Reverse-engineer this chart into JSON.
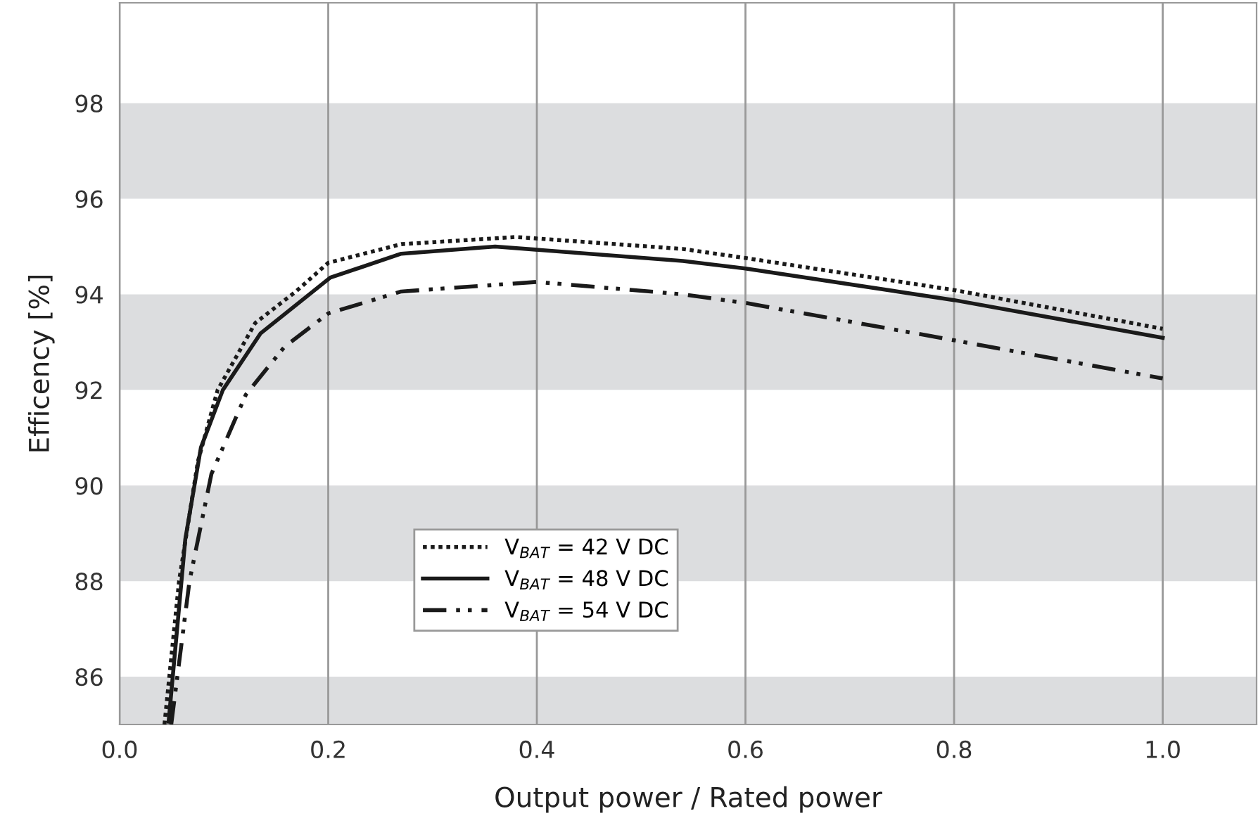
{
  "chart_data": {
    "type": "line",
    "xlabel": "Output power / Rated power",
    "ylabel": "Efficency [%]",
    "xlim": [
      0,
      1.09
    ],
    "ylim": [
      85,
      100.1
    ],
    "xticks": [
      {
        "value": 0,
        "label": "0.0"
      },
      {
        "value": 0.2,
        "label": "0.2"
      },
      {
        "value": 0.4,
        "label": "0.4"
      },
      {
        "value": 0.6,
        "label": "0.6"
      },
      {
        "value": 0.8,
        "label": "0.8"
      },
      {
        "value": 1.0,
        "label": "1.0"
      }
    ],
    "yticks": [
      86,
      88,
      90,
      92,
      94,
      96,
      98
    ],
    "grid": "x",
    "legend": "bottom",
    "bands": [
      {
        "axis": "y",
        "from": 85,
        "to": 86,
        "color": "#dcdddf"
      },
      {
        "axis": "y",
        "from": 88,
        "to": 90,
        "color": "#dcdddf"
      },
      {
        "axis": "y",
        "from": 92,
        "to": 94,
        "color": "#dcdddf"
      },
      {
        "axis": "y",
        "from": 96,
        "to": 98,
        "color": "#dcdddf"
      }
    ],
    "series": [
      {
        "name": "V$_{BAT}$ = 42 V DC",
        "color": "#1a1a1a",
        "line_style": "dotted",
        "x": [
          0.043,
          0.057,
          0.075,
          0.094,
          0.13,
          0.169,
          0.2,
          0.27,
          0.38,
          0.54,
          0.6,
          0.8,
          1.0
        ],
        "values": [
          85,
          88,
          90.5,
          92,
          93.4,
          94.06,
          94.66,
          95.05,
          95.2,
          94.95,
          94.76,
          94.09,
          93.28
        ]
      },
      {
        "name": "V$_{BAT}$ = 48 V DC",
        "color": "#1a1a1a",
        "line_style": "solid",
        "x": [
          0.047,
          0.063,
          0.078,
          0.099,
          0.135,
          0.202,
          0.27,
          0.36,
          0.54,
          0.6,
          0.8,
          1.0
        ],
        "values": [
          85.06,
          88.88,
          90.8,
          92,
          93.18,
          94.35,
          94.85,
          95,
          94.7,
          94.54,
          93.88,
          93.09
        ]
      },
      {
        "name": "V$_{BAT}$ = 54 V DC",
        "color": "#1a1a1a",
        "line_style": "dashed",
        "x": [
          0.0495,
          0.067,
          0.088,
          0.121,
          0.158,
          0.2,
          0.27,
          0.4,
          0.54,
          0.6,
          0.8,
          1.0
        ],
        "values": [
          85,
          88,
          90.24,
          91.9,
          92.9,
          93.6,
          94.06,
          94.26,
          94.0,
          93.82,
          93.04,
          92.24
        ]
      }
    ]
  }
}
